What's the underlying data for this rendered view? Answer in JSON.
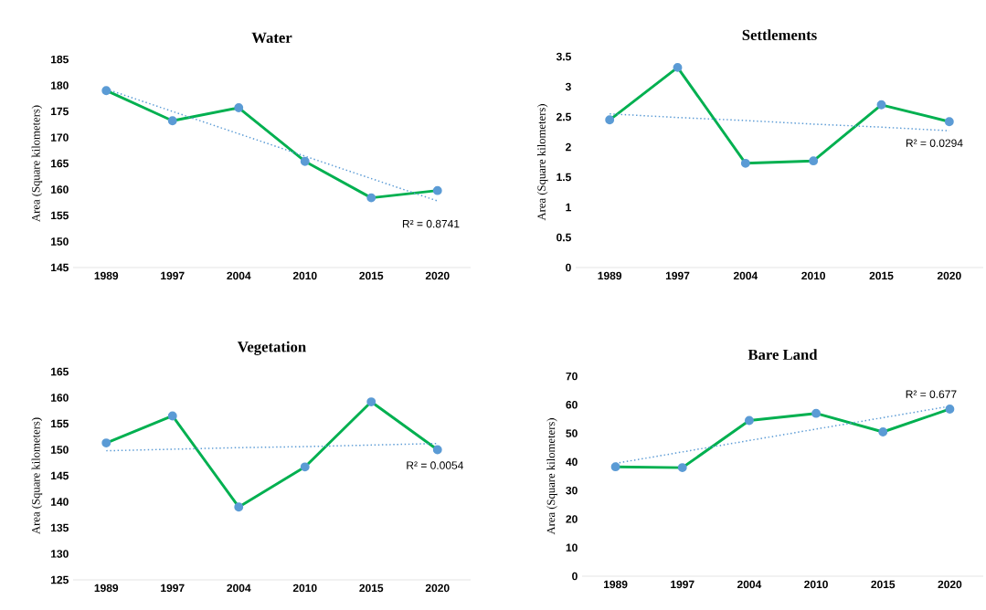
{
  "chart_data": [
    {
      "type": "line",
      "title": "Water",
      "ylabel": "Area (Square kilometers)",
      "categories": [
        "1989",
        "1997",
        "2004",
        "2010",
        "2015",
        "2020"
      ],
      "ylim": [
        145,
        185
      ],
      "yticks": [
        145,
        150,
        155,
        160,
        165,
        170,
        175,
        180,
        185
      ],
      "grid": false,
      "marker": "circle",
      "series": [
        {
          "color": "#00b050",
          "values": [
            179,
            173.2,
            175.7,
            165.4,
            158.4,
            159.8
          ]
        },
        {
          "type": "line",
          "values": [
            179.3,
            175.0,
            170.7,
            166.4,
            162.1,
            157.8
          ],
          "color": "#5b9bd5",
          "line_style": "dotted",
          "marker": "none"
        }
      ],
      "annotations": [
        "R² = 0.8741"
      ]
    },
    {
      "type": "line",
      "title": "Settlements",
      "ylabel": "Area (Square kilometers)",
      "categories": [
        "1989",
        "1997",
        "2004",
        "2010",
        "2015",
        "2020"
      ],
      "ylim": [
        0,
        3.5
      ],
      "yticks": [
        0,
        0.5,
        1,
        1.5,
        2,
        2.5,
        3,
        3.5
      ],
      "grid": false,
      "marker": "circle",
      "series": [
        {
          "color": "#00b050",
          "values": [
            2.45,
            3.32,
            1.73,
            1.77,
            2.7,
            2.42
          ]
        },
        {
          "type": "line",
          "values": [
            2.55,
            2.49,
            2.44,
            2.38,
            2.33,
            2.27
          ],
          "color": "#5b9bd5",
          "line_style": "dotted",
          "marker": "none"
        }
      ],
      "annotations": [
        "R² = 0.0294"
      ]
    },
    {
      "type": "line",
      "title": "Vegetation",
      "ylabel": "Area (Square kilometers)",
      "categories": [
        "1989",
        "1997",
        "2004",
        "2010",
        "2015",
        "2020"
      ],
      "ylim": [
        125,
        165
      ],
      "yticks": [
        125,
        130,
        135,
        140,
        145,
        150,
        155,
        160,
        165
      ],
      "grid": false,
      "marker": "circle",
      "series": [
        {
          "color": "#00b050",
          "values": [
            151.3,
            156.5,
            139,
            146.7,
            159.2,
            150
          ]
        },
        {
          "type": "line",
          "values": [
            149.8,
            150.1,
            150.4,
            150.6,
            150.9,
            151.2
          ],
          "color": "#5b9bd5",
          "line_style": "dotted",
          "marker": "none"
        }
      ],
      "annotations": [
        "R² = 0.0054"
      ]
    },
    {
      "type": "line",
      "title": "Bare Land",
      "ylabel": "Area (Square kilometers)",
      "categories": [
        "1989",
        "1997",
        "2004",
        "2010",
        "2015",
        "2020"
      ],
      "ylim": [
        0,
        70
      ],
      "yticks": [
        0,
        10,
        20,
        30,
        40,
        50,
        60,
        70
      ],
      "grid": false,
      "marker": "circle",
      "series": [
        {
          "color": "#00b050",
          "values": [
            38.3,
            38,
            54.5,
            57,
            50.5,
            58.5
          ]
        },
        {
          "type": "line",
          "values": [
            39.5,
            43.5,
            47.5,
            51.5,
            55.5,
            59.5
          ],
          "color": "#5b9bd5",
          "line_style": "dotted",
          "marker": "none"
        }
      ],
      "annotations": [
        "R² = 0.677"
      ]
    }
  ]
}
